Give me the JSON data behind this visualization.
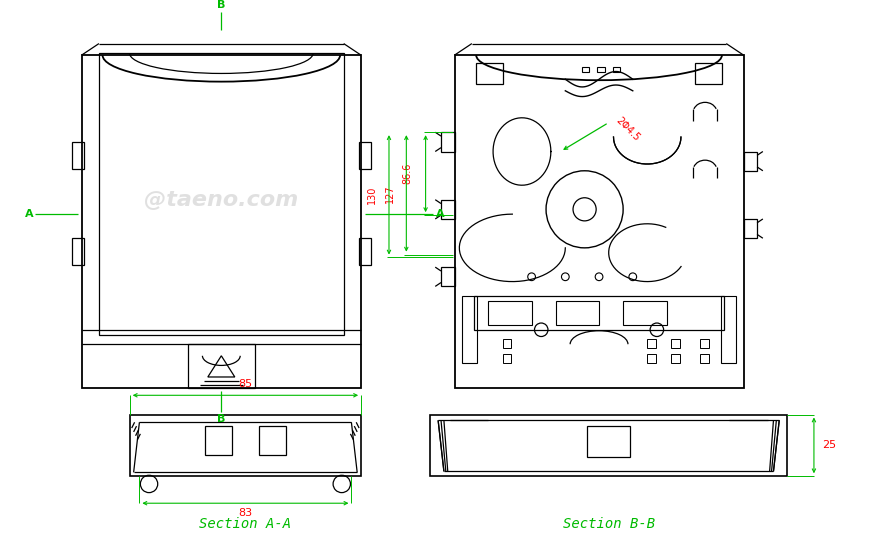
{
  "bg_color": "#ffffff",
  "line_color": "#000000",
  "green_color": "#00bb00",
  "red_color": "#ff0000",
  "watermark_color": "#cccccc",
  "watermark_text": "@taeno.com",
  "dim_130": "130",
  "dim_127": "127",
  "dim_866": "86.6",
  "dim_2phi45": "2Φ4.5",
  "dim_85": "85",
  "dim_83": "83",
  "dim_25": "25",
  "label_A": "A",
  "label_B": "B",
  "section_aa": "Section A-A",
  "section_bb": "Section B-B"
}
